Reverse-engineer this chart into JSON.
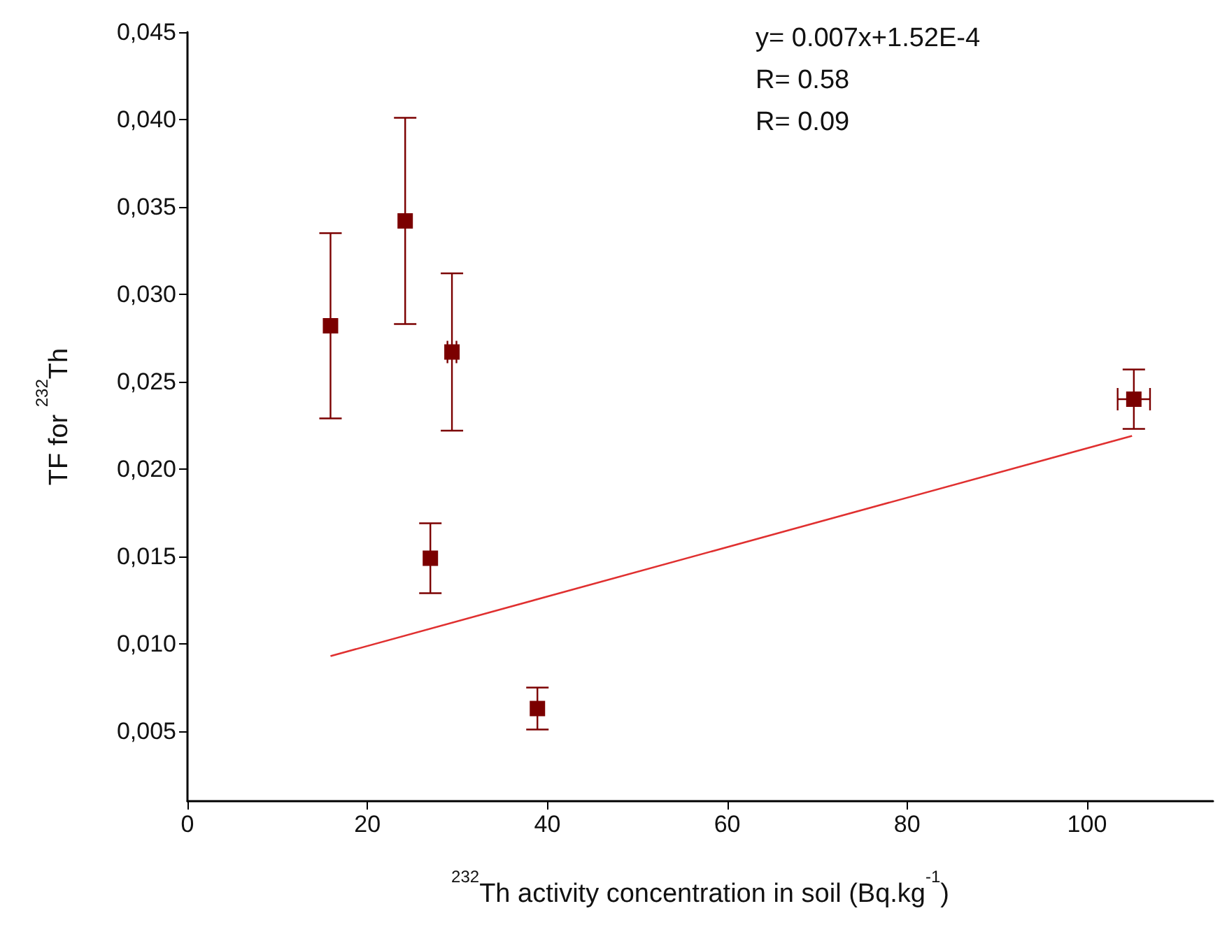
{
  "chart_data": {
    "type": "scatter",
    "xlabel": "$^{232}$Th activity concentration in soil (Bq.kg$^{-1}$)",
    "ylabel": "TF for $^{232}$Th",
    "annotations": [
      "y= 0.007x+1.52E-4",
      "R= 0.58",
      "R= 0.09"
    ],
    "xlim": [
      0,
      114
    ],
    "xticks": [
      0,
      20,
      40,
      60,
      80,
      100
    ],
    "ylim": [
      0.001,
      0.045
    ],
    "yticks": [
      {
        "value": 0.005,
        "label": "0,005"
      },
      {
        "value": 0.01,
        "label": "0,010"
      },
      {
        "value": 0.015,
        "label": "0,015"
      },
      {
        "value": 0.02,
        "label": "0,020"
      },
      {
        "value": 0.025,
        "label": "0,025"
      },
      {
        "value": 0.03,
        "label": "0,030"
      },
      {
        "value": 0.035,
        "label": "0,035"
      },
      {
        "value": 0.04,
        "label": "0,040"
      },
      {
        "value": 0.045,
        "label": "0,045"
      }
    ],
    "grid": false,
    "legend": false,
    "marker": "square",
    "series": [
      {
        "color": "#7b0000",
        "x": [
          15.9,
          24.2,
          29.4,
          27.0,
          38.9,
          105.2
        ],
        "values": [
          0.0282,
          0.0342,
          0.0267,
          0.0149,
          0.0063,
          0.024
        ],
        "errors": [
          0.0053,
          0.0059,
          0.0045,
          0.002,
          0.0012,
          0.0017
        ],
        "xerrors": [
          null,
          null,
          0.5,
          null,
          null,
          1.8
        ]
      },
      {
        "type": "line",
        "color": "#e03030",
        "marker": "none",
        "line_style": "solid",
        "x": [
          15.9,
          105
        ],
        "values": [
          0.0093,
          0.0219
        ]
      }
    ]
  }
}
